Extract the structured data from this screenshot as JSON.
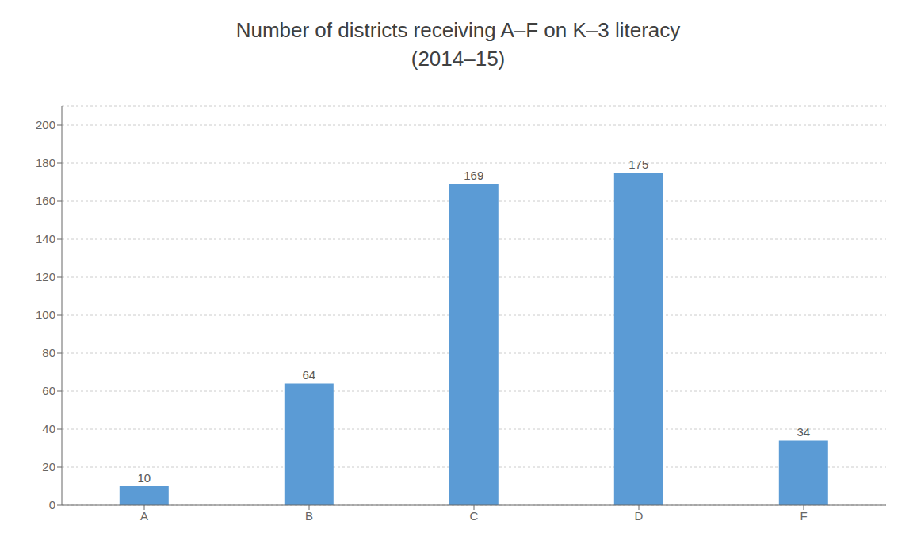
{
  "chart_data": {
    "type": "bar",
    "title": "Number of districts receiving A–F on K–3 literacy",
    "subtitle": "(2014–15)",
    "categories": [
      "A",
      "B",
      "C",
      "D",
      "F"
    ],
    "values": [
      10,
      64,
      169,
      175,
      34
    ],
    "color": "#5B9BD5",
    "ylim": [
      0,
      210
    ],
    "yticks": [
      0,
      20,
      40,
      60,
      80,
      100,
      120,
      140,
      160,
      180,
      200
    ],
    "grid": true,
    "data_labels": true
  }
}
